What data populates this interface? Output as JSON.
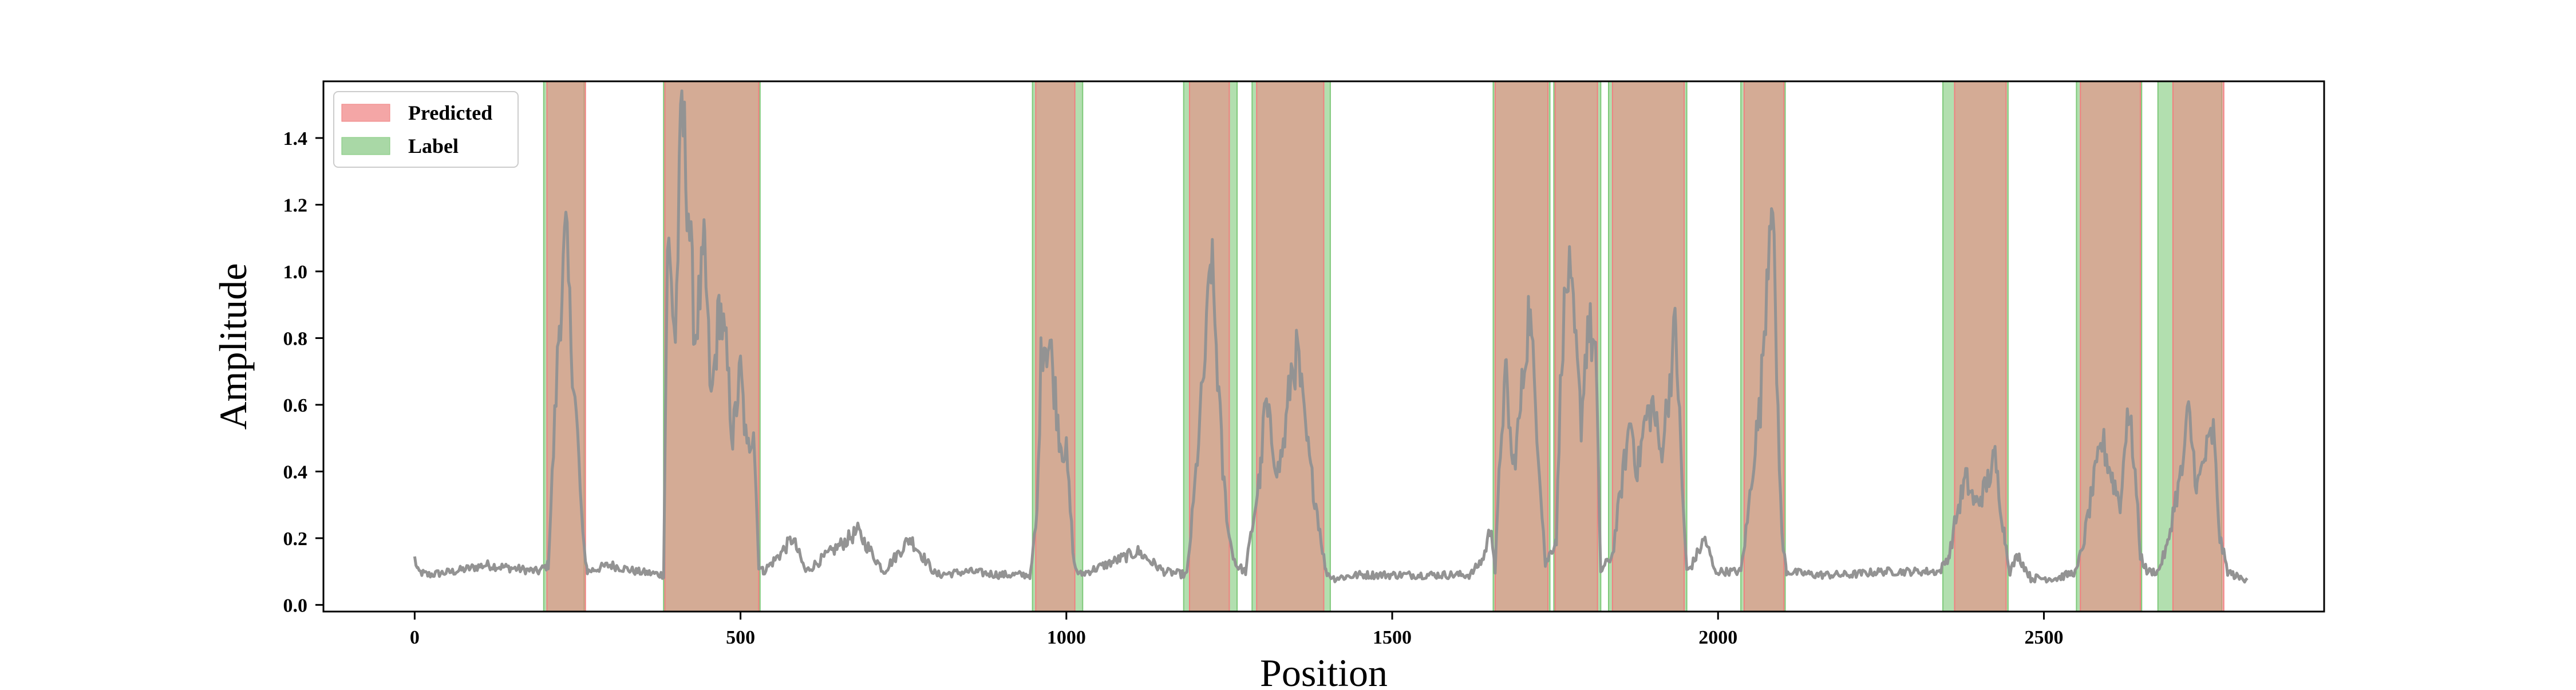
{
  "chart_data": {
    "type": "line",
    "xlabel": "Position",
    "ylabel": "Amplitude",
    "xlim": [
      -140,
      2930
    ],
    "ylim": [
      -0.02,
      1.57
    ],
    "xticks": [
      0,
      500,
      1000,
      1500,
      2000,
      2500
    ],
    "yticks": [
      0.0,
      0.2,
      0.4,
      0.6,
      0.8,
      1.0,
      1.2,
      1.4
    ],
    "ytick_labels": [
      "0.0",
      "0.2",
      "0.4",
      "0.6",
      "0.8",
      "1.0",
      "1.2",
      "1.4"
    ],
    "legend": {
      "position": "top-left",
      "entries": [
        {
          "label": "Predicted",
          "color": "#f4a6a6"
        },
        {
          "label": "Label",
          "color": "#a9d8a6"
        }
      ]
    },
    "colors": {
      "signal": "#939393",
      "predicted": "#f08080",
      "label": "#7fc97a"
    },
    "predicted_regions": [
      [
        203,
        262
      ],
      [
        384,
        528
      ],
      [
        953,
        1013
      ],
      [
        1189,
        1250
      ],
      [
        1292,
        1395
      ],
      [
        1658,
        1739
      ],
      [
        1750,
        1815
      ],
      [
        1838,
        1948
      ],
      [
        2040,
        2101
      ],
      [
        2363,
        2442
      ],
      [
        2556,
        2648
      ],
      [
        2698,
        2776
      ]
    ],
    "label_regions": [
      [
        198,
        260
      ],
      [
        382,
        530
      ],
      [
        948,
        1025
      ],
      [
        1180,
        1262
      ],
      [
        1285,
        1405
      ],
      [
        1655,
        1742
      ],
      [
        1748,
        1820
      ],
      [
        1832,
        1952
      ],
      [
        2035,
        2103
      ],
      [
        2345,
        2445
      ],
      [
        2550,
        2650
      ],
      [
        2675,
        2773
      ]
    ],
    "signal_anchors": [
      [
        0,
        0.14
      ],
      [
        5,
        0.1
      ],
      [
        20,
        0.09
      ],
      [
        60,
        0.1
      ],
      [
        110,
        0.12
      ],
      [
        150,
        0.11
      ],
      [
        190,
        0.1
      ],
      [
        205,
        0.12
      ],
      [
        215,
        0.55
      ],
      [
        222,
        0.85
      ],
      [
        232,
        1.1
      ],
      [
        240,
        0.8
      ],
      [
        250,
        0.5
      ],
      [
        258,
        0.2
      ],
      [
        265,
        0.1
      ],
      [
        300,
        0.12
      ],
      [
        340,
        0.1
      ],
      [
        382,
        0.09
      ],
      [
        388,
        1.1
      ],
      [
        400,
        0.8
      ],
      [
        410,
        1.5
      ],
      [
        420,
        1.2
      ],
      [
        430,
        0.8
      ],
      [
        445,
        1.05
      ],
      [
        455,
        0.6
      ],
      [
        468,
        0.9
      ],
      [
        478,
        0.75
      ],
      [
        488,
        0.5
      ],
      [
        500,
        0.7
      ],
      [
        510,
        0.45
      ],
      [
        520,
        0.55
      ],
      [
        528,
        0.12
      ],
      [
        535,
        0.1
      ],
      [
        560,
        0.15
      ],
      [
        580,
        0.2
      ],
      [
        600,
        0.1
      ],
      [
        640,
        0.16
      ],
      [
        680,
        0.22
      ],
      [
        720,
        0.1
      ],
      [
        760,
        0.2
      ],
      [
        800,
        0.09
      ],
      [
        850,
        0.1
      ],
      [
        900,
        0.09
      ],
      [
        945,
        0.09
      ],
      [
        955,
        0.27
      ],
      [
        962,
        0.8
      ],
      [
        975,
        0.78
      ],
      [
        990,
        0.5
      ],
      [
        1000,
        0.45
      ],
      [
        1012,
        0.12
      ],
      [
        1020,
        0.09
      ],
      [
        1060,
        0.12
      ],
      [
        1110,
        0.16
      ],
      [
        1150,
        0.1
      ],
      [
        1185,
        0.09
      ],
      [
        1195,
        0.3
      ],
      [
        1205,
        0.55
      ],
      [
        1215,
        0.8
      ],
      [
        1222,
        1.05
      ],
      [
        1230,
        0.78
      ],
      [
        1240,
        0.4
      ],
      [
        1250,
        0.2
      ],
      [
        1260,
        0.12
      ],
      [
        1275,
        0.1
      ],
      [
        1298,
        0.4
      ],
      [
        1305,
        0.6
      ],
      [
        1315,
        0.5
      ],
      [
        1325,
        0.4
      ],
      [
        1335,
        0.5
      ],
      [
        1345,
        0.7
      ],
      [
        1355,
        0.75
      ],
      [
        1365,
        0.55
      ],
      [
        1375,
        0.4
      ],
      [
        1385,
        0.28
      ],
      [
        1398,
        0.1
      ],
      [
        1410,
        0.08
      ],
      [
        1450,
        0.09
      ],
      [
        1500,
        0.09
      ],
      [
        1560,
        0.09
      ],
      [
        1620,
        0.09
      ],
      [
        1640,
        0.14
      ],
      [
        1652,
        0.24
      ],
      [
        1658,
        0.1
      ],
      [
        1668,
        0.55
      ],
      [
        1675,
        0.68
      ],
      [
        1685,
        0.4
      ],
      [
        1695,
        0.55
      ],
      [
        1710,
        0.89
      ],
      [
        1722,
        0.55
      ],
      [
        1735,
        0.12
      ],
      [
        1752,
        0.2
      ],
      [
        1760,
        0.78
      ],
      [
        1770,
        1.0
      ],
      [
        1780,
        0.8
      ],
      [
        1790,
        0.55
      ],
      [
        1800,
        0.85
      ],
      [
        1812,
        0.75
      ],
      [
        1820,
        0.1
      ],
      [
        1838,
        0.15
      ],
      [
        1848,
        0.3
      ],
      [
        1858,
        0.45
      ],
      [
        1866,
        0.56
      ],
      [
        1876,
        0.4
      ],
      [
        1888,
        0.55
      ],
      [
        1900,
        0.6
      ],
      [
        1912,
        0.45
      ],
      [
        1922,
        0.6
      ],
      [
        1935,
        0.84
      ],
      [
        1945,
        0.35
      ],
      [
        1952,
        0.1
      ],
      [
        1960,
        0.12
      ],
      [
        1980,
        0.2
      ],
      [
        1995,
        0.1
      ],
      [
        2035,
        0.1
      ],
      [
        2045,
        0.25
      ],
      [
        2055,
        0.45
      ],
      [
        2065,
        0.6
      ],
      [
        2075,
        1.0
      ],
      [
        2082,
        1.3
      ],
      [
        2090,
        0.7
      ],
      [
        2098,
        0.2
      ],
      [
        2105,
        0.1
      ],
      [
        2150,
        0.09
      ],
      [
        2200,
        0.09
      ],
      [
        2250,
        0.1
      ],
      [
        2300,
        0.1
      ],
      [
        2340,
        0.1
      ],
      [
        2355,
        0.15
      ],
      [
        2365,
        0.26
      ],
      [
        2380,
        0.38
      ],
      [
        2395,
        0.3
      ],
      [
        2410,
        0.35
      ],
      [
        2425,
        0.44
      ],
      [
        2440,
        0.2
      ],
      [
        2448,
        0.1
      ],
      [
        2460,
        0.15
      ],
      [
        2480,
        0.08
      ],
      [
        2520,
        0.08
      ],
      [
        2550,
        0.1
      ],
      [
        2562,
        0.2
      ],
      [
        2575,
        0.35
      ],
      [
        2590,
        0.49
      ],
      [
        2605,
        0.38
      ],
      [
        2618,
        0.3
      ],
      [
        2628,
        0.6
      ],
      [
        2638,
        0.45
      ],
      [
        2648,
        0.15
      ],
      [
        2658,
        0.1
      ],
      [
        2675,
        0.1
      ],
      [
        2690,
        0.18
      ],
      [
        2700,
        0.3
      ],
      [
        2712,
        0.4
      ],
      [
        2722,
        0.58
      ],
      [
        2735,
        0.35
      ],
      [
        2748,
        0.45
      ],
      [
        2760,
        0.52
      ],
      [
        2770,
        0.2
      ],
      [
        2782,
        0.1
      ],
      [
        2800,
        0.08
      ],
      [
        2812,
        0.08
      ]
    ]
  }
}
